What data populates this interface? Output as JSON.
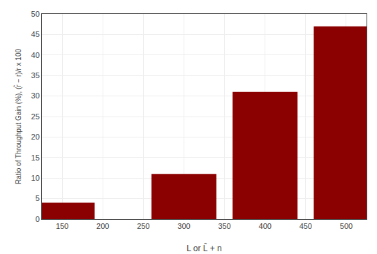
{
  "chart_data": {
    "type": "bar",
    "x": [
      150,
      300,
      400,
      500
    ],
    "values": [
      4.0,
      11.0,
      31.0,
      47.0
    ],
    "color": "#8B0000",
    "xlabel": "L or L̂ + n",
    "ylabel": "Ratio of Throughput Gain (%), (r̂ − r)/r x 100",
    "xlim": [
      125,
      525
    ],
    "xticks": [
      150,
      200,
      250,
      300,
      350,
      400,
      450,
      500
    ],
    "ylim": [
      0,
      50
    ],
    "yticks": [
      0,
      5,
      10,
      15,
      20,
      25,
      30,
      35,
      40,
      45,
      50
    ],
    "grid": true
  }
}
